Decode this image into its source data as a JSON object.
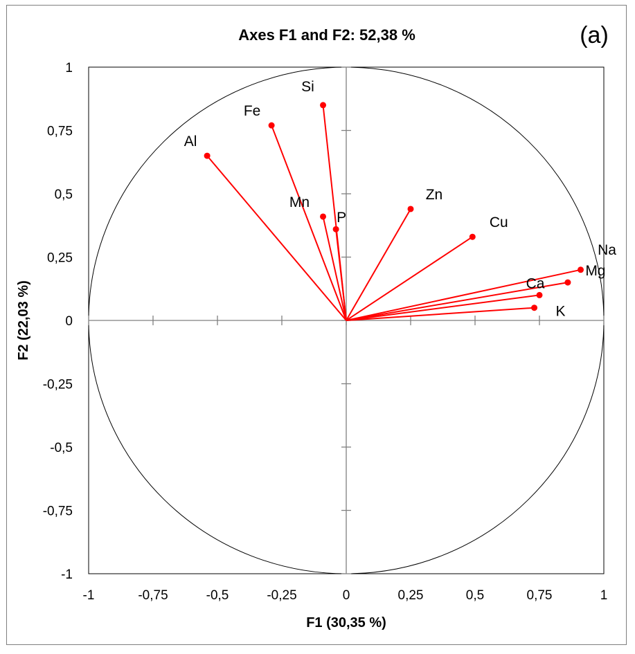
{
  "chart_data": {
    "type": "scatter",
    "title": "Axes F1 and F2: 52,38 %",
    "panel_label": "(a)",
    "xlabel": "F1 (30,35 %)",
    "ylabel": "F2 (22,03 %)",
    "xlim": [
      -1,
      1
    ],
    "ylim": [
      -1,
      1
    ],
    "x_ticks": [
      "-1",
      "-0,75",
      "-0,5",
      "-0,25",
      "0",
      "0,25",
      "0,5",
      "0,75",
      "1"
    ],
    "y_ticks": [
      "1",
      "0,75",
      "0,5",
      "0,25",
      "0",
      "-0,25",
      "-0,5",
      "-0,75",
      "-1"
    ],
    "correlation_circle": true,
    "series_color": "#ff0000",
    "points": [
      {
        "label": "Al",
        "x": -0.54,
        "y": 0.65
      },
      {
        "label": "Fe",
        "x": -0.29,
        "y": 0.77
      },
      {
        "label": "Si",
        "x": -0.09,
        "y": 0.85
      },
      {
        "label": "Mn",
        "x": -0.09,
        "y": 0.41
      },
      {
        "label": "P",
        "x": -0.04,
        "y": 0.36
      },
      {
        "label": "Zn",
        "x": 0.25,
        "y": 0.44
      },
      {
        "label": "Cu",
        "x": 0.49,
        "y": 0.33
      },
      {
        "label": "Na",
        "x": 0.91,
        "y": 0.2
      },
      {
        "label": "Mg",
        "x": 0.86,
        "y": 0.15
      },
      {
        "label": "Ca",
        "x": 0.75,
        "y": 0.1
      },
      {
        "label": "K",
        "x": 0.73,
        "y": 0.05
      }
    ]
  }
}
